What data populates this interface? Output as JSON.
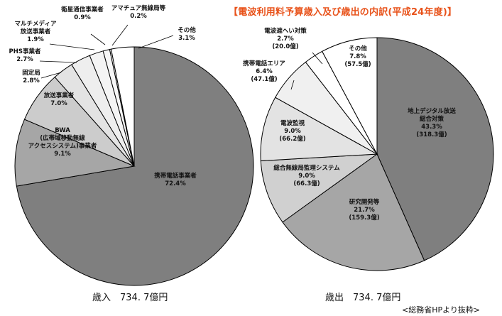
{
  "title": "【電波利用料予算歳入及び歳出の内訳(平成24年度)】",
  "source": "<総務省HPより抜粋>",
  "chart_data": [
    {
      "type": "pie",
      "caption": "歳入　734. 7億円",
      "slices": [
        {
          "lines": [
            "携帯電話事業者",
            "72.4%"
          ],
          "value": 72.4,
          "color": "#7f7f7f"
        },
        {
          "lines": [
            "BWA",
            "(広帯域移動無線",
            "アクセスシステム)事業者",
            "9.1%"
          ],
          "value": 9.1,
          "color": "#a6a6a6"
        },
        {
          "lines": [
            "放送事業者",
            "7.0%"
          ],
          "value": 7.0,
          "color": "#cccccc"
        },
        {
          "lines": [
            "固定局",
            "2.8%"
          ],
          "value": 2.8,
          "color": "#e3e3e3"
        },
        {
          "lines": [
            "PHS事業者",
            "2.7%"
          ],
          "value": 2.7,
          "color": "#eeeeee"
        },
        {
          "lines": [
            "マルチメディア",
            "放送事業者",
            "1.9%"
          ],
          "value": 1.9,
          "color": "#f4f4f4"
        },
        {
          "lines": [
            "衛星通信事業者",
            "0.9%"
          ],
          "value": 0.9,
          "color": "#f7f7f7"
        },
        {
          "lines": [
            "アマチュア無線局等",
            "0.2%"
          ],
          "value": 0.2,
          "color": "#fafafa"
        },
        {
          "lines": [
            "その他",
            "3.1%"
          ],
          "value": 3.1,
          "color": "#ffffff"
        }
      ]
    },
    {
      "type": "pie",
      "caption": "歳出　734. 7億円",
      "slices": [
        {
          "lines": [
            "地上デジタル放送",
            "総合対策",
            "43.3%",
            "(318.3億)"
          ],
          "value": 43.3,
          "color": "#7f7f7f"
        },
        {
          "lines": [
            "研究開発等",
            "21.7%",
            "(159.3億)"
          ],
          "value": 21.7,
          "color": "#a6a6a6"
        },
        {
          "lines": [
            "総合無線局監理システム",
            "9.0%",
            "(66.3億)"
          ],
          "value": 9.0,
          "color": "#d0d0d0"
        },
        {
          "lines": [
            "電波監視",
            "9.0%",
            "(66.2億)"
          ],
          "value": 9.0,
          "color": "#e3e3e3"
        },
        {
          "lines": [
            "携帯電話エリア",
            "6.4%",
            "(47.1億)"
          ],
          "value": 6.4,
          "color": "#f0f0f0"
        },
        {
          "lines": [
            "電波遮へい対策",
            "2.7%",
            "(20.0億)"
          ],
          "value": 2.7,
          "color": "#ffffff"
        },
        {
          "lines": [
            "その他",
            "7.8%",
            "(57.5億)"
          ],
          "value": 7.8,
          "color": "#ffffff"
        }
      ]
    }
  ]
}
